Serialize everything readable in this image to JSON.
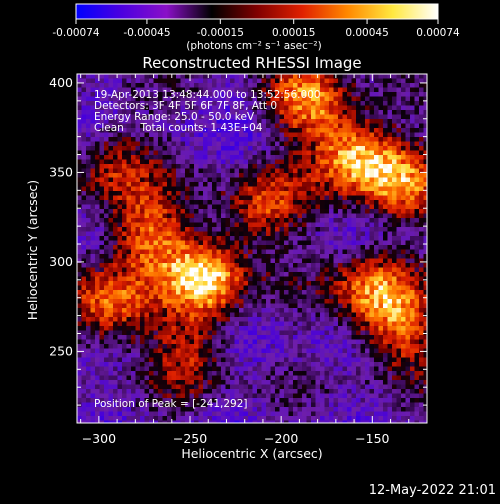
{
  "colorbar": {
    "tick_labels": [
      "-0.00074",
      "-0.00045",
      "-0.00015",
      "0.00015",
      "0.00045",
      "0.00074"
    ],
    "tick_values": [
      -0.00074,
      -0.00045,
      -0.00015,
      0.00015,
      0.00045,
      0.00074
    ],
    "range": [
      -0.00074,
      0.00074
    ],
    "units_label": "(photons cm⁻² s⁻¹ asec⁻²)",
    "colormap": [
      "#0000ff",
      "#4b00e0",
      "#8a10c8",
      "#000000",
      "#800000",
      "#e02000",
      "#ff8800",
      "#ffe840",
      "#ffffff"
    ]
  },
  "chart_data": {
    "type": "heatmap",
    "title": "Reconstructed RHESSI Image",
    "xlabel": "Heliocentric X (arcsec)",
    "ylabel": "Heliocentric Y (arcsec)",
    "xlim": [
      -312,
      -120
    ],
    "ylim": [
      210,
      405
    ],
    "x_ticks": [
      -300,
      -250,
      -200,
      -150
    ],
    "y_ticks": [
      250,
      300,
      350,
      400
    ],
    "x_tick_labels": [
      "−300",
      "−250",
      "−200",
      "−150"
    ],
    "y_tick_labels": [
      "250",
      "300",
      "350",
      "400"
    ],
    "peak": {
      "x": -241,
      "y": 292
    },
    "hot_regions": [
      {
        "x": -241,
        "y": 292,
        "level": 1.0
      },
      {
        "x": -275,
        "y": 315,
        "level": 0.7
      },
      {
        "x": -295,
        "y": 275,
        "level": 0.75
      },
      {
        "x": -160,
        "y": 360,
        "level": 0.9
      },
      {
        "x": -185,
        "y": 390,
        "level": 0.7
      },
      {
        "x": -150,
        "y": 285,
        "level": 0.75
      },
      {
        "x": -135,
        "y": 260,
        "level": 0.6
      },
      {
        "x": -135,
        "y": 345,
        "level": 0.65
      },
      {
        "x": -210,
        "y": 330,
        "level": 0.6
      },
      {
        "x": -290,
        "y": 355,
        "level": 0.55
      },
      {
        "x": -250,
        "y": 250,
        "level": 0.5
      }
    ],
    "annotations": [
      "19-Apr-2013 13:48:44.000 to 13:52:56.000",
      "Detectors: 3F 4F 5F 6F 7F 8F, Att 0",
      "Energy Range: 25.0 - 50.0 keV",
      "Clean     Total counts: 1.43E+04"
    ],
    "peak_label": "Position of Peak = [-241,292]"
  },
  "timestamp": "12-May-2022 21:01"
}
